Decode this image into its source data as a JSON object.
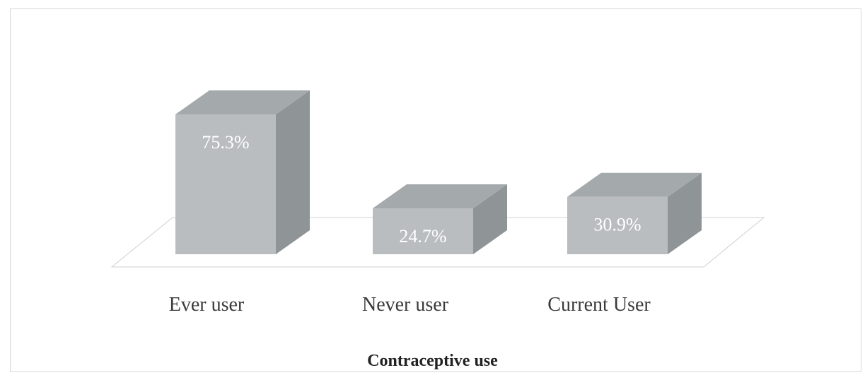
{
  "chart_data": {
    "type": "bar",
    "categories": [
      "Ever user",
      "Never user",
      "Current User"
    ],
    "values": [
      75.3,
      24.7,
      30.9
    ],
    "data_labels": [
      "75.3%",
      "24.7%",
      "30.9%"
    ],
    "title": "Contraceptive use",
    "xlabel": "",
    "ylabel": "",
    "ylim": [
      0,
      100
    ],
    "grid": false,
    "legend": "none",
    "style": "3d-column",
    "colors": {
      "front": "#b9bdbf",
      "side": "#8f9597",
      "top": "#a4a9ab",
      "floor_line": "#d0d0d0",
      "label_text": "#ffffff"
    }
  }
}
